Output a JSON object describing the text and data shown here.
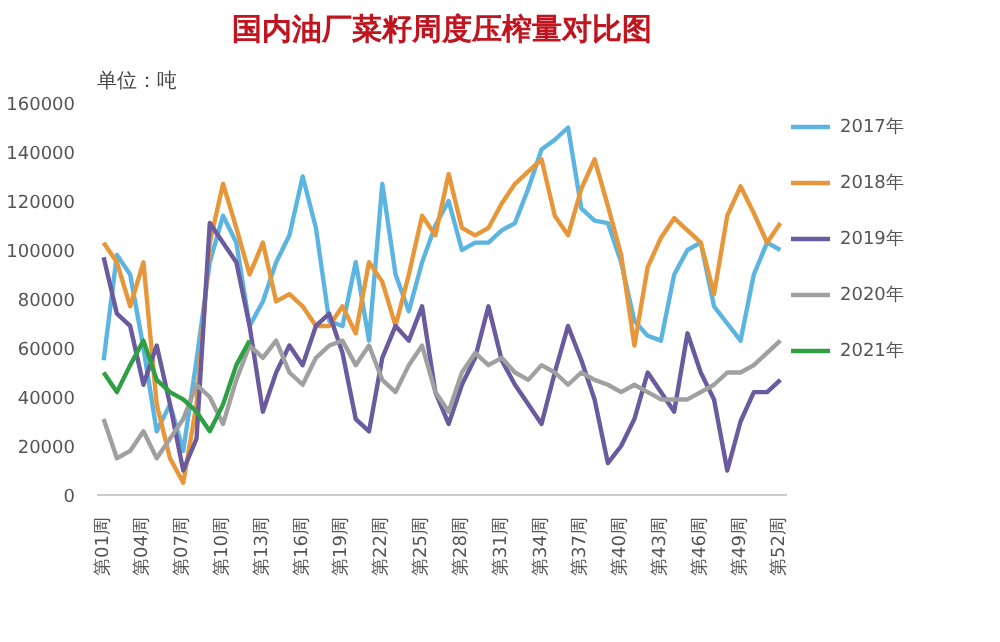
{
  "chart_data": {
    "type": "line",
    "title": "国内油厂菜籽周度压榨量对比图",
    "ylabel": "单位：吨",
    "categories": [
      "第01周",
      null,
      null,
      "第04周",
      null,
      null,
      "第07周",
      null,
      null,
      "第10周",
      null,
      null,
      "第13周",
      null,
      null,
      "第16周",
      null,
      null,
      "第19周",
      null,
      null,
      "第22周",
      null,
      null,
      "第25周",
      null,
      null,
      "第28周",
      null,
      null,
      "第31周",
      null,
      null,
      "第34周",
      null,
      null,
      "第37周",
      null,
      null,
      "第40周",
      null,
      null,
      "第43周",
      null,
      null,
      "第46周",
      null,
      null,
      "第49周",
      null,
      null,
      "第52周"
    ],
    "ylim": [
      0,
      160000
    ],
    "yticks": [
      0,
      20000,
      40000,
      60000,
      80000,
      100000,
      120000,
      140000,
      160000
    ],
    "grid": false,
    "legend": "right",
    "series": [
      {
        "name": "2017年",
        "color": "#5bb5e0",
        "values": [
          55000,
          98000,
          90000,
          60000,
          26000,
          37000,
          18000,
          55000,
          95000,
          114000,
          103000,
          69000,
          79000,
          95000,
          106000,
          130000,
          109000,
          71000,
          69000,
          95000,
          63000,
          127000,
          90000,
          75000,
          95000,
          110000,
          120000,
          100000,
          103000,
          103000,
          108000,
          111000,
          125000,
          141000,
          145000,
          150000,
          117000,
          112000,
          111000,
          95000,
          71000,
          65000,
          63000,
          90000,
          100000,
          103000,
          77000,
          70000,
          63000,
          90000,
          103000,
          100000
        ]
      },
      {
        "name": "2018年",
        "color": "#e8963a",
        "values": [
          103000,
          95000,
          77000,
          95000,
          37000,
          15000,
          5000,
          37000,
          103000,
          127000,
          109000,
          90000,
          103000,
          79000,
          82000,
          77000,
          69000,
          69000,
          77000,
          66000,
          95000,
          87000,
          69000,
          90000,
          114000,
          106000,
          131000,
          109000,
          106000,
          109000,
          119000,
          127000,
          132000,
          137000,
          114000,
          106000,
          125000,
          137000,
          118000,
          98000,
          61000,
          93000,
          105000,
          113000,
          108000,
          103000,
          82000,
          114000,
          126000,
          115000,
          103000,
          111000
        ]
      },
      {
        "name": "2019年",
        "color": "#6a5a9e",
        "values": [
          97000,
          74000,
          69000,
          45000,
          61000,
          37000,
          10000,
          23000,
          111000,
          103000,
          95000,
          69000,
          34000,
          50000,
          61000,
          53000,
          69000,
          74000,
          58000,
          31000,
          26000,
          56000,
          69000,
          63000,
          77000,
          42000,
          29000,
          45000,
          56000,
          77000,
          55000,
          45000,
          37000,
          29000,
          50000,
          69000,
          55000,
          39000,
          13000,
          20000,
          31000,
          50000,
          42000,
          34000,
          66000,
          50000,
          39000,
          10000,
          30000,
          42000,
          42000,
          47000
        ]
      },
      {
        "name": "2020年",
        "color": "#a0a0a0",
        "values": [
          31000,
          15000,
          18000,
          26000,
          15000,
          23000,
          31000,
          45000,
          40000,
          29000,
          47000,
          61000,
          56000,
          63000,
          50000,
          45000,
          56000,
          61000,
          63000,
          53000,
          61000,
          47000,
          42000,
          53000,
          61000,
          42000,
          34000,
          50000,
          58000,
          53000,
          56000,
          50000,
          47000,
          53000,
          50000,
          45000,
          50000,
          47000,
          45000,
          42000,
          45000,
          42000,
          39000,
          39000,
          39000,
          42000,
          45000,
          50000,
          50000,
          53000,
          58000,
          63000
        ]
      },
      {
        "name": "2021年",
        "color": "#2ea043",
        "values": [
          50000,
          42000,
          53000,
          63000,
          47000,
          42000,
          39000,
          34000,
          26000,
          37000,
          53000,
          63000,
          null,
          null,
          null,
          null,
          null,
          null,
          null,
          null,
          null,
          null,
          null,
          null,
          null,
          null,
          null,
          null,
          null,
          null,
          null,
          null,
          null,
          null,
          null,
          null,
          null,
          null,
          null,
          null,
          null,
          null,
          null,
          null,
          null,
          null,
          null,
          null,
          null,
          null,
          null,
          null
        ]
      }
    ]
  }
}
